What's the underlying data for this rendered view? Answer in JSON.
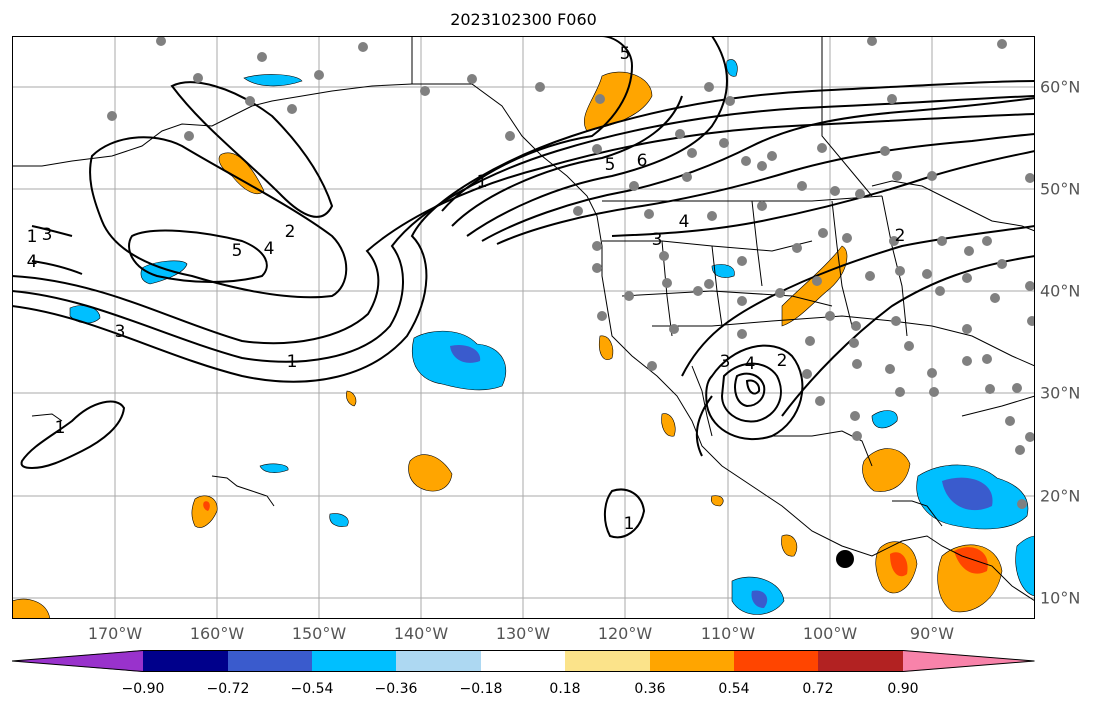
{
  "title": "2023102300 F060",
  "lon_labels": [
    "170°W",
    "160°W",
    "150°W",
    "140°W",
    "130°W",
    "120°W",
    "110°W",
    "100°W",
    "90°W"
  ],
  "lat_labels": [
    "60°N",
    "50°N",
    "40°N",
    "30°N",
    "20°N",
    "10°N"
  ],
  "colorbar": {
    "colors": [
      "#9932cc",
      "#00008b",
      "#3a5bcd",
      "#00bfff",
      "#add8f2",
      "#ffffff",
      "#fbe38a",
      "#ffa500",
      "#ff4500",
      "#b22222",
      "#f883aa"
    ],
    "labels": [
      "−0.90",
      "−0.72",
      "−0.54",
      "−0.36",
      "−0.18",
      "0.18",
      "0.36",
      "0.54",
      "0.72",
      "0.90"
    ]
  },
  "contour_labels": [
    "1",
    "1",
    "1",
    "1",
    "1",
    "2",
    "2",
    "2",
    "3",
    "3",
    "3",
    "3",
    "4",
    "4",
    "4",
    "4",
    "5",
    "5",
    "5",
    "6"
  ],
  "marker_colors": {
    "station": "#808080",
    "storm": "#000000"
  }
}
